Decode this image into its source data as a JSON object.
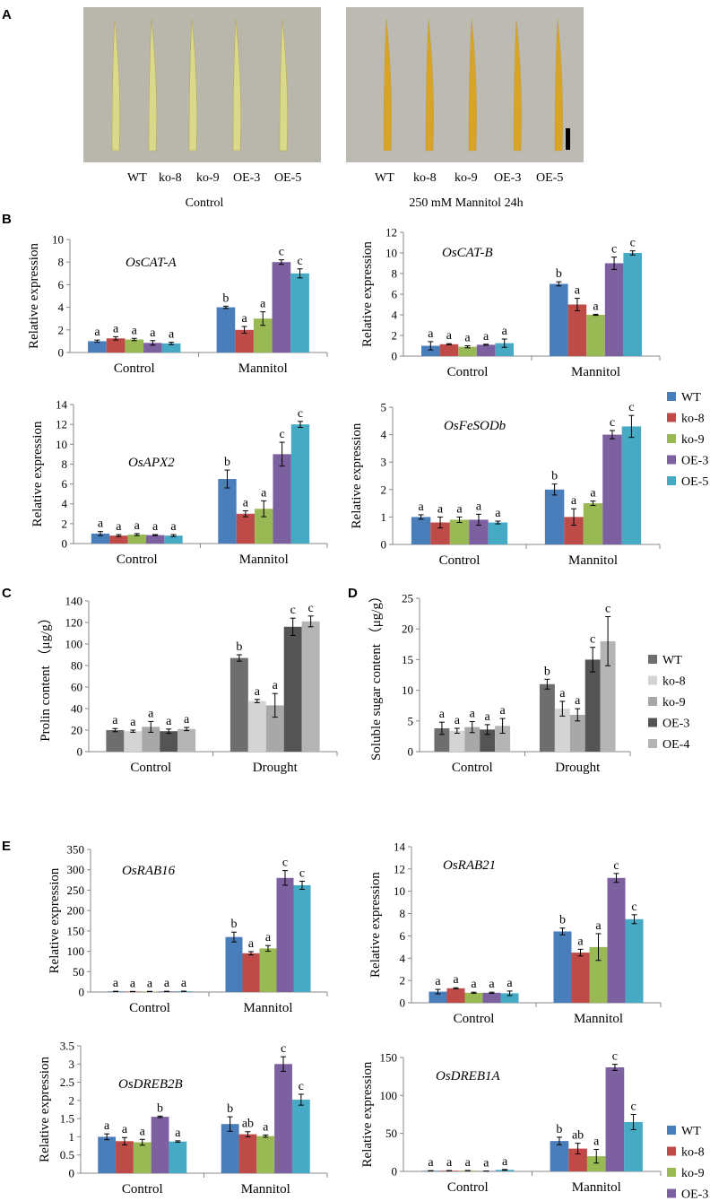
{
  "panels": {
    "a": "A",
    "b": "B",
    "c": "C",
    "d": "D",
    "e": "E"
  },
  "photos": {
    "control": {
      "leaf_labels": [
        "WT",
        "ko-8",
        "ko-9",
        "OE-3",
        "OE-5"
      ],
      "caption": "Control",
      "bg_color": "#b9b6ac",
      "leaf_color": "#d8d98a"
    },
    "mannitol": {
      "leaf_labels": [
        "WT",
        "ko-8",
        "ko-9",
        "OE-3",
        "OE-5"
      ],
      "caption": "250 mM Mannitol  24h",
      "bg_color": "#bdb9b3",
      "leaf_color": "#d9a326"
    }
  },
  "colors": {
    "expr": [
      "#4a7ebb",
      "#be4b48",
      "#98b954",
      "#7d60a0",
      "#46aac5"
    ],
    "gray": [
      "#6e6e6e",
      "#d4d4d4",
      "#a8a8a8",
      "#545454",
      "#b4b4b4"
    ]
  },
  "legends": {
    "expr": [
      "WT",
      "ko-8",
      "ko-9",
      "OE-3",
      "OE-5"
    ],
    "gray": [
      "WT",
      "ko-8",
      "ko-9",
      "OE-3",
      "OE-4"
    ]
  },
  "chart_data": [
    {
      "id": "b1",
      "type": "bar",
      "title": "OsCAT-A",
      "ylabel": "Relative expression",
      "categories": [
        "Control",
        "Mannitol"
      ],
      "ylim": [
        0,
        10
      ],
      "yticks": [
        0,
        2,
        4,
        6,
        8,
        10
      ],
      "series": [
        {
          "name": "WT",
          "values": [
            1.0,
            4.0
          ],
          "errors": [
            0.1,
            0.1
          ],
          "letters": [
            "a",
            "b"
          ]
        },
        {
          "name": "ko-8",
          "values": [
            1.25,
            2.0
          ],
          "errors": [
            0.15,
            0.3
          ],
          "letters": [
            "a",
            "a"
          ]
        },
        {
          "name": "ko-9",
          "values": [
            1.15,
            3.0
          ],
          "errors": [
            0.1,
            0.6
          ],
          "letters": [
            "a",
            "a"
          ]
        },
        {
          "name": "OE-3",
          "values": [
            0.85,
            8.0
          ],
          "errors": [
            0.2,
            0.2
          ],
          "letters": [
            "a",
            "c"
          ]
        },
        {
          "name": "OE-5",
          "values": [
            0.8,
            7.0
          ],
          "errors": [
            0.1,
            0.4
          ],
          "letters": [
            "a",
            "c"
          ]
        }
      ]
    },
    {
      "id": "b2",
      "type": "bar",
      "title": "OsCAT-B",
      "ylabel": "Relative expression",
      "categories": [
        "Control",
        "Mannitol"
      ],
      "ylim": [
        0,
        12
      ],
      "yticks": [
        0,
        2,
        4,
        6,
        8,
        10,
        12
      ],
      "series": [
        {
          "name": "WT",
          "values": [
            1.0,
            7.0
          ],
          "errors": [
            0.4,
            0.2
          ],
          "letters": [
            "a",
            "b"
          ]
        },
        {
          "name": "ko-8",
          "values": [
            1.15,
            5.0
          ],
          "errors": [
            0.05,
            0.6
          ],
          "letters": [
            "a",
            "a"
          ]
        },
        {
          "name": "ko-9",
          "values": [
            0.9,
            4.0
          ],
          "errors": [
            0.1,
            0.05
          ],
          "letters": [
            "a",
            "a"
          ]
        },
        {
          "name": "OE-3",
          "values": [
            1.1,
            9.0
          ],
          "errors": [
            0.05,
            0.6
          ],
          "letters": [
            "a",
            "c"
          ]
        },
        {
          "name": "OE-5",
          "values": [
            1.25,
            10.0
          ],
          "errors": [
            0.4,
            0.2
          ],
          "letters": [
            "a",
            "c"
          ]
        }
      ]
    },
    {
      "id": "b3",
      "type": "bar",
      "title": "OsAPX2",
      "ylabel": "Relative expression",
      "categories": [
        "Control",
        "Mannitol"
      ],
      "ylim": [
        0,
        14
      ],
      "yticks": [
        0,
        2,
        4,
        6,
        8,
        10,
        12,
        14
      ],
      "series": [
        {
          "name": "WT",
          "values": [
            1.0,
            6.5
          ],
          "errors": [
            0.2,
            0.9
          ],
          "letters": [
            "a",
            "b"
          ]
        },
        {
          "name": "ko-8",
          "values": [
            0.8,
            3.0
          ],
          "errors": [
            0.1,
            0.3
          ],
          "letters": [
            "a",
            "a"
          ]
        },
        {
          "name": "ko-9",
          "values": [
            0.9,
            3.5
          ],
          "errors": [
            0.1,
            0.8
          ],
          "letters": [
            "a",
            "a"
          ]
        },
        {
          "name": "OE-3",
          "values": [
            0.85,
            9.0
          ],
          "errors": [
            0.05,
            1.2
          ],
          "letters": [
            "a",
            "c"
          ]
        },
        {
          "name": "OE-5",
          "values": [
            0.8,
            12.0
          ],
          "errors": [
            0.1,
            0.3
          ],
          "letters": [
            "a",
            "c"
          ]
        }
      ]
    },
    {
      "id": "b4",
      "type": "bar",
      "title": "OsFeSODb",
      "ylabel": "Relative expression",
      "categories": [
        "Control",
        "Mannitol"
      ],
      "ylim": [
        0,
        5
      ],
      "yticks": [
        0,
        1,
        2,
        3,
        4,
        5
      ],
      "series": [
        {
          "name": "WT",
          "values": [
            1.0,
            2.0
          ],
          "errors": [
            0.08,
            0.2
          ],
          "letters": [
            "a",
            "b"
          ]
        },
        {
          "name": "ko-8",
          "values": [
            0.8,
            1.0
          ],
          "errors": [
            0.2,
            0.3
          ],
          "letters": [
            "a",
            "a"
          ]
        },
        {
          "name": "ko-9",
          "values": [
            0.9,
            1.5
          ],
          "errors": [
            0.1,
            0.08
          ],
          "letters": [
            "a",
            "a"
          ]
        },
        {
          "name": "OE-3",
          "values": [
            0.9,
            4.0
          ],
          "errors": [
            0.2,
            0.15
          ],
          "letters": [
            "a",
            "c"
          ]
        },
        {
          "name": "OE-5",
          "values": [
            0.8,
            4.3
          ],
          "errors": [
            0.05,
            0.4
          ],
          "letters": [
            "a",
            "c"
          ]
        }
      ]
    },
    {
      "id": "c",
      "type": "bar",
      "title": "",
      "ylabel": "Prolin content （μg/g）",
      "categories": [
        "Control",
        "Drought"
      ],
      "ylim": [
        0,
        140
      ],
      "yticks": [
        0,
        20,
        40,
        60,
        80,
        100,
        120,
        140
      ],
      "series": [
        {
          "name": "WT",
          "values": [
            20,
            87
          ],
          "errors": [
            1.5,
            3
          ],
          "letters": [
            "a",
            "b"
          ]
        },
        {
          "name": "ko-8",
          "values": [
            19,
            47
          ],
          "errors": [
            1,
            1.5
          ],
          "letters": [
            "a",
            "a"
          ]
        },
        {
          "name": "ko-9",
          "values": [
            23,
            43
          ],
          "errors": [
            5,
            11
          ],
          "letters": [
            "a",
            "a"
          ]
        },
        {
          "name": "OE-3",
          "values": [
            19,
            116
          ],
          "errors": [
            2,
            8
          ],
          "letters": [
            "a",
            "c"
          ]
        },
        {
          "name": "OE-4",
          "values": [
            21,
            121
          ],
          "errors": [
            1.5,
            5
          ],
          "letters": [
            "a",
            "c"
          ]
        }
      ]
    },
    {
      "id": "d",
      "type": "bar",
      "title": "",
      "ylabel": "Soluble sugar content （μg/g）",
      "categories": [
        "Control",
        "Drought"
      ],
      "ylim": [
        0,
        25
      ],
      "yticks": [
        0,
        5,
        10,
        15,
        20,
        25
      ],
      "series": [
        {
          "name": "WT",
          "values": [
            3.8,
            11
          ],
          "errors": [
            1.0,
            0.8
          ],
          "letters": [
            "a",
            "b"
          ]
        },
        {
          "name": "ko-8",
          "values": [
            3.4,
            7
          ],
          "errors": [
            0.4,
            1.2
          ],
          "letters": [
            "a",
            "a"
          ]
        },
        {
          "name": "ko-9",
          "values": [
            4.0,
            6
          ],
          "errors": [
            0.9,
            1.0
          ],
          "letters": [
            "a",
            "a"
          ]
        },
        {
          "name": "OE-3",
          "values": [
            3.6,
            15
          ],
          "errors": [
            0.8,
            2.0
          ],
          "letters": [
            "a",
            "c"
          ]
        },
        {
          "name": "OE-4",
          "values": [
            4.2,
            18
          ],
          "errors": [
            1.2,
            4.0
          ],
          "letters": [
            "a",
            "c"
          ]
        }
      ]
    },
    {
      "id": "e1",
      "type": "bar",
      "title": "OsRAB16",
      "ylabel": "Relative expression",
      "categories": [
        "Control",
        "Mannitol"
      ],
      "ylim": [
        0,
        350
      ],
      "yticks": [
        0,
        50,
        100,
        150,
        200,
        250,
        300,
        350
      ],
      "series": [
        {
          "name": "WT",
          "values": [
            1.5,
            135
          ],
          "errors": [
            0.3,
            12
          ],
          "letters": [
            "a",
            "b"
          ]
        },
        {
          "name": "ko-8",
          "values": [
            1.2,
            95
          ],
          "errors": [
            0.3,
            4
          ],
          "letters": [
            "a",
            "a"
          ]
        },
        {
          "name": "ko-9",
          "values": [
            1.3,
            107
          ],
          "errors": [
            0.3,
            7
          ],
          "letters": [
            "a",
            "a"
          ]
        },
        {
          "name": "OE-3",
          "values": [
            1.5,
            280
          ],
          "errors": [
            0.3,
            18
          ],
          "letters": [
            "a",
            "c"
          ]
        },
        {
          "name": "OE-5",
          "values": [
            1.8,
            262
          ],
          "errors": [
            0.3,
            10
          ],
          "letters": [
            "a",
            "c"
          ]
        }
      ]
    },
    {
      "id": "e2",
      "type": "bar",
      "title": "OsRAB21",
      "ylabel": "Relative expression",
      "categories": [
        "Control",
        "Mannitol"
      ],
      "ylim": [
        0,
        14
      ],
      "yticks": [
        0,
        2,
        4,
        6,
        8,
        10,
        12,
        14
      ],
      "series": [
        {
          "name": "WT",
          "values": [
            1.0,
            6.4
          ],
          "errors": [
            0.2,
            0.3
          ],
          "letters": [
            "a",
            "b"
          ]
        },
        {
          "name": "ko-8",
          "values": [
            1.3,
            4.5
          ],
          "errors": [
            0.05,
            0.3
          ],
          "letters": [
            "a",
            "a"
          ]
        },
        {
          "name": "ko-9",
          "values": [
            0.9,
            5.0
          ],
          "errors": [
            0.05,
            1.2
          ],
          "letters": [
            "a",
            "a"
          ]
        },
        {
          "name": "OE-3",
          "values": [
            0.9,
            11.2
          ],
          "errors": [
            0.05,
            0.4
          ],
          "letters": [
            "a",
            "c"
          ]
        },
        {
          "name": "OE-5",
          "values": [
            0.85,
            7.5
          ],
          "errors": [
            0.2,
            0.4
          ],
          "letters": [
            "a",
            "c"
          ]
        }
      ]
    },
    {
      "id": "e3",
      "type": "bar",
      "title": "OsDREB2B",
      "ylabel": "Relative expression",
      "categories": [
        "Control",
        "Mannitol"
      ],
      "ylim": [
        0,
        3.5
      ],
      "yticks": [
        0,
        0.5,
        1,
        1.5,
        2,
        2.5,
        3,
        3.5
      ],
      "series": [
        {
          "name": "WT",
          "values": [
            1.0,
            1.35
          ],
          "errors": [
            0.08,
            0.2
          ],
          "letters": [
            "a",
            "b"
          ]
        },
        {
          "name": "ko-8",
          "values": [
            0.88,
            1.07
          ],
          "errors": [
            0.1,
            0.07
          ],
          "letters": [
            "a",
            "ab"
          ]
        },
        {
          "name": "ko-9",
          "values": [
            0.85,
            1.02
          ],
          "errors": [
            0.08,
            0.03
          ],
          "letters": [
            "a",
            "a"
          ]
        },
        {
          "name": "OE-3",
          "values": [
            1.55,
            3.0
          ],
          "errors": [
            0.02,
            0.2
          ],
          "letters": [
            "b",
            "c"
          ]
        },
        {
          "name": "OE-5",
          "values": [
            0.87,
            2.02
          ],
          "errors": [
            0.02,
            0.15
          ],
          "letters": [
            "a",
            "c"
          ]
        }
      ]
    },
    {
      "id": "e4",
      "type": "bar",
      "title": "OsDREB1A",
      "ylabel": "Relative expression",
      "categories": [
        "Control",
        "Mannitol"
      ],
      "ylim": [
        0,
        150
      ],
      "yticks": [
        0,
        50,
        100,
        150
      ],
      "series": [
        {
          "name": "WT",
          "values": [
            0.8,
            40
          ],
          "errors": [
            0.2,
            5
          ],
          "letters": [
            "a",
            "b"
          ]
        },
        {
          "name": "ko-8",
          "values": [
            0.9,
            30
          ],
          "errors": [
            0.2,
            7
          ],
          "letters": [
            "a",
            "ab"
          ]
        },
        {
          "name": "ko-9",
          "values": [
            1.0,
            20
          ],
          "errors": [
            0.2,
            9
          ],
          "letters": [
            "a",
            "a"
          ]
        },
        {
          "name": "OE-3",
          "values": [
            0.5,
            137
          ],
          "errors": [
            0.1,
            4
          ],
          "letters": [
            "a",
            "c"
          ]
        },
        {
          "name": "OE-5",
          "values": [
            2.0,
            65
          ],
          "errors": [
            0.5,
            10
          ],
          "letters": [
            "a",
            "c"
          ]
        }
      ]
    }
  ]
}
